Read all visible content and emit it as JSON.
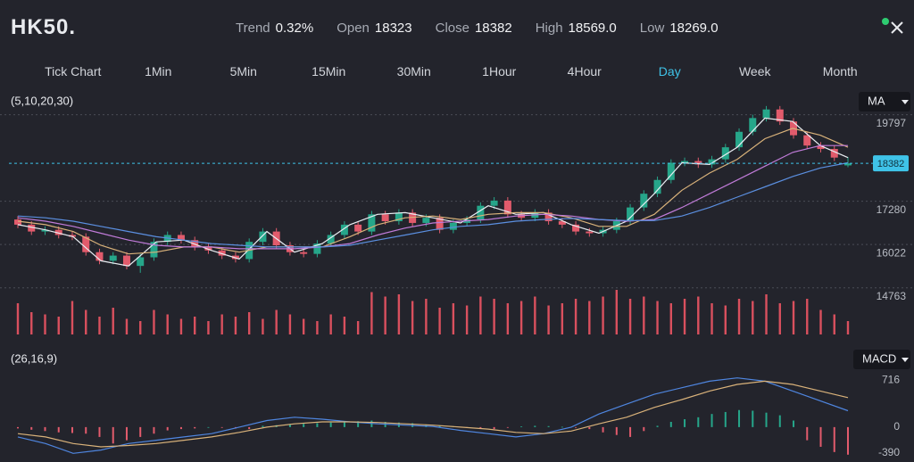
{
  "header": {
    "symbol": "HK50.",
    "stats": [
      {
        "label": "Trend",
        "value": "0.32%"
      },
      {
        "label": "Open",
        "value": "18323"
      },
      {
        "label": "Close",
        "value": "18382"
      },
      {
        "label": "High",
        "value": "18569.0"
      },
      {
        "label": "Low",
        "value": "18269.0"
      }
    ]
  },
  "tabs": [
    {
      "label": "Tick Chart"
    },
    {
      "label": "1Min"
    },
    {
      "label": "5Min"
    },
    {
      "label": "15Min"
    },
    {
      "label": "30Min"
    },
    {
      "label": "1Hour"
    },
    {
      "label": "4Hour"
    },
    {
      "label": "Day",
      "active": true
    },
    {
      "label": "Week"
    },
    {
      "label": "Month"
    }
  ],
  "chart_data": [
    {
      "type": "candlestick",
      "subtitle": "(5,10,20,30)",
      "indicator": "MA",
      "up_color": "#26a68a",
      "down_color": "#e25b6c",
      "ylim": [
        14600,
        20150
      ],
      "yticks": [
        19797,
        17280,
        16022,
        14763
      ],
      "grid": true,
      "last_price": 18382,
      "open": [
        16750,
        16600,
        16400,
        16450,
        16300,
        16250,
        15800,
        15550,
        15700,
        15400,
        15650,
        16100,
        16300,
        16150,
        15950,
        15850,
        15700,
        15600,
        16100,
        16400,
        16000,
        15800,
        15750,
        16050,
        16300,
        16600,
        16400,
        16900,
        16700,
        16950,
        16650,
        16800,
        16450,
        16650,
        16750,
        17150,
        17300,
        16900,
        16800,
        16950,
        16700,
        16600,
        16400,
        16350,
        16450,
        16700,
        17100,
        17500,
        17900,
        18400,
        18450,
        18350,
        18500,
        18850,
        19300,
        19700,
        19950,
        19600,
        19200,
        18900,
        18800,
        18323
      ],
      "high": [
        16850,
        16700,
        16550,
        16550,
        16400,
        16350,
        15900,
        15800,
        15800,
        15750,
        16200,
        16400,
        16400,
        16250,
        16050,
        15950,
        15800,
        16200,
        16500,
        16500,
        16100,
        15900,
        16150,
        16400,
        16700,
        16700,
        17000,
        17000,
        17050,
        17050,
        16900,
        16900,
        16750,
        16850,
        17250,
        17400,
        17400,
        17000,
        17050,
        17050,
        16800,
        16700,
        16500,
        16550,
        16800,
        17200,
        17600,
        18000,
        18500,
        18550,
        18550,
        18600,
        18950,
        19400,
        19800,
        20050,
        20050,
        19700,
        19300,
        19000,
        18900,
        18569
      ],
      "low": [
        16500,
        16300,
        16300,
        16200,
        16150,
        15700,
        15450,
        15450,
        15300,
        15200,
        15550,
        16000,
        16050,
        15850,
        15750,
        15600,
        15500,
        15500,
        16000,
        15900,
        15700,
        15650,
        15650,
        15950,
        16200,
        16300,
        16300,
        16600,
        16600,
        16550,
        16550,
        16350,
        16350,
        16550,
        16650,
        17050,
        16800,
        16700,
        16700,
        16600,
        16500,
        16300,
        16250,
        16250,
        16350,
        16600,
        17000,
        17400,
        17800,
        18300,
        18250,
        18250,
        18400,
        18750,
        19200,
        19600,
        19500,
        19100,
        18800,
        18700,
        18450,
        18269
      ],
      "close": [
        16600,
        16400,
        16450,
        16300,
        16250,
        15800,
        15550,
        15700,
        15400,
        15650,
        16100,
        16300,
        16150,
        15950,
        15850,
        15700,
        15600,
        16100,
        16400,
        16000,
        15800,
        15750,
        16050,
        16300,
        16600,
        16400,
        16900,
        16700,
        16950,
        16650,
        16800,
        16450,
        16650,
        16750,
        17150,
        17300,
        16900,
        16800,
        16950,
        16700,
        16600,
        16400,
        16350,
        16450,
        16700,
        17100,
        17500,
        17900,
        18400,
        18450,
        18350,
        18500,
        18850,
        19300,
        19700,
        19950,
        19600,
        19200,
        18900,
        18800,
        18550,
        18382
      ],
      "series": [
        {
          "color": "#e9edf2",
          "values": [
            16600,
            16450,
            16250,
            15550,
            15400,
            16100,
            16150,
            15850,
            15600,
            16400,
            15800,
            16050,
            16600,
            16900,
            16950,
            16800,
            16650,
            17150,
            16900,
            16950,
            16600,
            16350,
            16700,
            17500,
            18400,
            18350,
            18850,
            19700,
            19600,
            18900,
            18550
          ]
        },
        {
          "color": "#d9b27a",
          "values": [
            16700,
            16600,
            16400,
            16000,
            15750,
            15800,
            15950,
            15950,
            15800,
            15950,
            15950,
            15950,
            16250,
            16600,
            16800,
            16850,
            16750,
            16900,
            16950,
            16950,
            16800,
            16550,
            16550,
            16900,
            17600,
            18100,
            18500,
            19100,
            19400,
            19200,
            18850
          ]
        },
        {
          "color": "#c07bd8",
          "values": [
            16800,
            16700,
            16550,
            16350,
            16150,
            16000,
            15950,
            15950,
            15900,
            15900,
            15900,
            15950,
            16050,
            16300,
            16500,
            16650,
            16700,
            16750,
            16850,
            16900,
            16850,
            16750,
            16700,
            16750,
            17100,
            17500,
            17900,
            18300,
            18700,
            18900,
            18900
          ]
        },
        {
          "color": "#5b8fe0",
          "values": [
            16850,
            16800,
            16700,
            16550,
            16400,
            16250,
            16150,
            16050,
            16000,
            15950,
            15950,
            15950,
            16000,
            16150,
            16300,
            16450,
            16550,
            16600,
            16700,
            16750,
            16780,
            16750,
            16720,
            16720,
            16850,
            17100,
            17400,
            17700,
            18000,
            18250,
            18400
          ]
        }
      ]
    },
    {
      "type": "bar",
      "color": "#d9505e",
      "ylim": [
        0,
        100
      ],
      "values": [
        70,
        50,
        45,
        40,
        75,
        55,
        40,
        60,
        35,
        30,
        55,
        45,
        35,
        40,
        30,
        45,
        40,
        50,
        35,
        55,
        45,
        35,
        30,
        45,
        40,
        30,
        95,
        85,
        90,
        75,
        80,
        60,
        70,
        65,
        85,
        80,
        70,
        75,
        85,
        65,
        70,
        80,
        75,
        85,
        100,
        80,
        85,
        75,
        70,
        80,
        85,
        70,
        65,
        80,
        75,
        90,
        70,
        75,
        80,
        55,
        45,
        30
      ]
    },
    {
      "type": "macd",
      "subtitle": "(26,16,9)",
      "indicator": "MACD",
      "ylim": [
        -450,
        800
      ],
      "yticks": [
        716,
        0,
        -390
      ],
      "up_color": "#26a68a",
      "down_color": "#e25b6c",
      "histogram": [
        -20,
        -40,
        -60,
        -80,
        -90,
        -100,
        -150,
        -250,
        -200,
        -150,
        -100,
        -50,
        -30,
        -20,
        0,
        -10,
        -20,
        -30,
        20,
        30,
        40,
        50,
        60,
        70,
        80,
        90,
        100,
        80,
        70,
        60,
        40,
        20,
        10,
        -10,
        -20,
        -30,
        -10,
        10,
        20,
        15,
        5,
        -10,
        -30,
        -80,
        -120,
        -150,
        -60,
        20,
        80,
        120,
        150,
        200,
        230,
        260,
        250,
        220,
        180,
        100,
        -200,
        -300,
        -380,
        -420
      ],
      "series": [
        {
          "color": "#4f86e0",
          "values": [
            -150,
            -250,
            -400,
            -350,
            -250,
            -200,
            -150,
            -100,
            0,
            100,
            150,
            120,
            80,
            50,
            30,
            10,
            -50,
            -100,
            -150,
            -100,
            0,
            200,
            350,
            500,
            600,
            700,
            750,
            700,
            550,
            400,
            250
          ]
        },
        {
          "color": "#d9b27a",
          "values": [
            -100,
            -150,
            -250,
            -300,
            -280,
            -250,
            -200,
            -150,
            -80,
            0,
            50,
            80,
            80,
            70,
            50,
            30,
            0,
            -30,
            -80,
            -100,
            -60,
            50,
            150,
            300,
            420,
            550,
            650,
            700,
            650,
            550,
            450
          ]
        }
      ]
    }
  ]
}
